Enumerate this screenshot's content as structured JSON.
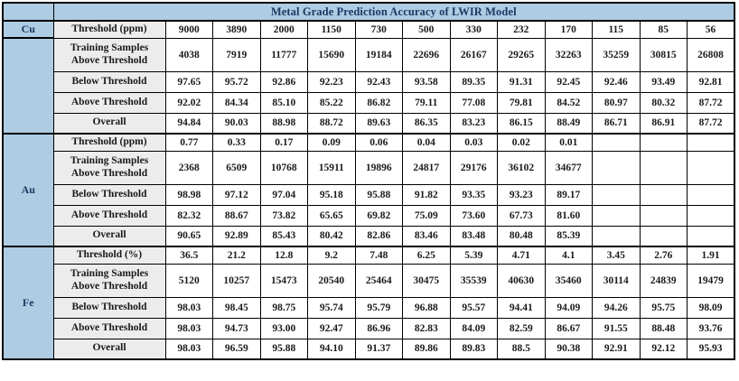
{
  "table": {
    "title": "Metal Grade Prediction Accuracy of LWIR Model",
    "colors": {
      "header_blue": "#aecce2",
      "label_gray": "#ececec",
      "title_text": "#1f3864",
      "body_text": "#1a1a1a",
      "border": "#000000"
    },
    "sections": [
      {
        "metal": "Cu",
        "label_rowspan": 1,
        "rows": [
          {
            "type": "threshold",
            "label": "Threshold (ppm)",
            "values": [
              "9000",
              "3890",
              "2000",
              "1150",
              "730",
              "500",
              "330",
              "232",
              "170",
              "115",
              "85",
              "56"
            ]
          },
          {
            "type": "training",
            "label": "Training Samples\nAbove Threshold",
            "values": [
              "4038",
              "7919",
              "11777",
              "15690",
              "19184",
              "22696",
              "26167",
              "29265",
              "32263",
              "35259",
              "30815",
              "26808"
            ]
          },
          {
            "type": "below",
            "label": "Below Threshold",
            "values": [
              "97.65",
              "95.72",
              "92.86",
              "92.23",
              "92.43",
              "93.58",
              "89.35",
              "91.31",
              "92.45",
              "92.46",
              "93.49",
              "92.81"
            ]
          },
          {
            "type": "above",
            "label": "Above Threshold",
            "values": [
              "92.02",
              "84.34",
              "85.10",
              "85.22",
              "86.82",
              "79.11",
              "77.08",
              "79.81",
              "84.52",
              "80.97",
              "80.32",
              "87.72"
            ]
          },
          {
            "type": "overall",
            "label": "Overall",
            "values": [
              "94.84",
              "90.03",
              "88.98",
              "88.72",
              "89.63",
              "86.35",
              "83.23",
              "86.15",
              "88.49",
              "86.71",
              "86.91",
              "87.72"
            ]
          }
        ]
      },
      {
        "metal": "Au",
        "label_rowspan": 5,
        "rows": [
          {
            "type": "threshold",
            "label": "Threshold (ppm)",
            "values": [
              "0.77",
              "0.33",
              "0.17",
              "0.09",
              "0.06",
              "0.04",
              "0.03",
              "0.02",
              "0.01",
              "",
              "",
              ""
            ]
          },
          {
            "type": "training",
            "label": "Training Samples\nAbove Threshold",
            "values": [
              "2368",
              "6509",
              "10768",
              "15911",
              "19896",
              "24817",
              "29176",
              "36102",
              "34677",
              "",
              "",
              ""
            ]
          },
          {
            "type": "below",
            "label": "Below Threshold",
            "values": [
              "98.98",
              "97.12",
              "97.04",
              "95.18",
              "95.88",
              "91.82",
              "93.35",
              "93.23",
              "89.17",
              "",
              "",
              ""
            ]
          },
          {
            "type": "above",
            "label": "Above Threshold",
            "values": [
              "82.32",
              "88.67",
              "73.82",
              "65.65",
              "69.82",
              "75.09",
              "73.60",
              "67.73",
              "81.60",
              "",
              "",
              ""
            ]
          },
          {
            "type": "overall",
            "label": "Overall",
            "values": [
              "90.65",
              "92.89",
              "85.43",
              "80.42",
              "82.86",
              "83.46",
              "83.48",
              "80.48",
              "85.39",
              "",
              "",
              ""
            ]
          }
        ]
      },
      {
        "metal": "Fe",
        "label_rowspan": 5,
        "rows": [
          {
            "type": "threshold",
            "label": "Threshold (%)",
            "values": [
              "36.5",
              "21.2",
              "12.8",
              "9.2",
              "7.48",
              "6.25",
              "5.39",
              "4.71",
              "4.1",
              "3.45",
              "2.76",
              "1.91"
            ]
          },
          {
            "type": "training",
            "label": "Training Samples\nAbove Threshold",
            "values": [
              "5120",
              "10257",
              "15473",
              "20540",
              "25464",
              "30475",
              "35539",
              "40630",
              "35460",
              "30114",
              "24839",
              "19479"
            ]
          },
          {
            "type": "below",
            "label": "Below Threshold",
            "values": [
              "98.03",
              "98.45",
              "98.75",
              "95.74",
              "95.79",
              "96.88",
              "95.57",
              "94.41",
              "94.09",
              "94.26",
              "95.75",
              "98.09"
            ]
          },
          {
            "type": "above",
            "label": "Above Threshold",
            "values": [
              "98.03",
              "94.73",
              "93.00",
              "92.47",
              "86.96",
              "82.83",
              "84.09",
              "82.59",
              "86.67",
              "91.55",
              "88.48",
              "93.76"
            ]
          },
          {
            "type": "overall",
            "label": "Overall",
            "values": [
              "98.03",
              "96.59",
              "95.88",
              "94.10",
              "91.37",
              "89.86",
              "89.83",
              "88.5",
              "90.38",
              "92.91",
              "92.12",
              "95.93"
            ]
          }
        ]
      }
    ]
  }
}
